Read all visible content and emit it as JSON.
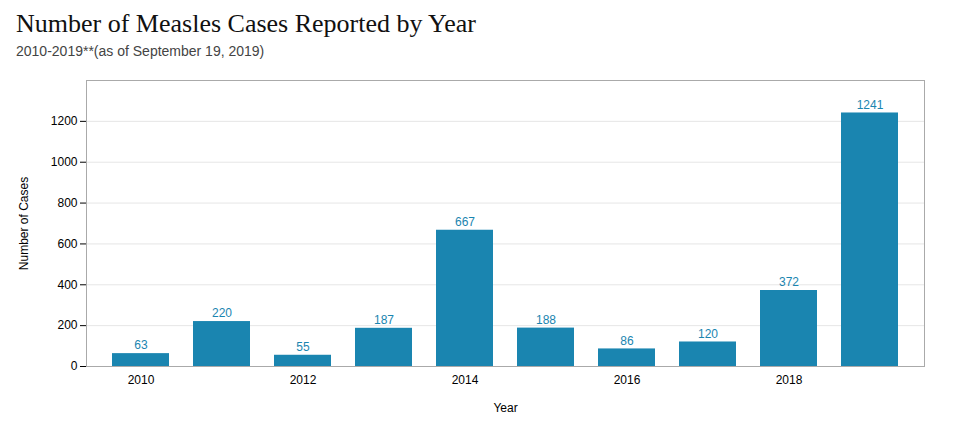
{
  "chart_data": {
    "type": "bar",
    "title": "Number of Measles Cases Reported by Year",
    "subtitle": "2010-2019**(as of September 19, 2019)",
    "categories": [
      "2010",
      null,
      "2012",
      null,
      "2014",
      null,
      "2016",
      null,
      "2018",
      null
    ],
    "values": [
      63,
      220,
      55,
      187,
      667,
      188,
      86,
      120,
      372,
      1241
    ],
    "color": "#1a85b0",
    "xlabel": "Year",
    "ylabel": "Number of Cases",
    "ylim": [
      0,
      1400
    ],
    "yticks": [
      0,
      200,
      400,
      600,
      800,
      1000,
      1200
    ],
    "grid": true,
    "data_labels": true
  }
}
